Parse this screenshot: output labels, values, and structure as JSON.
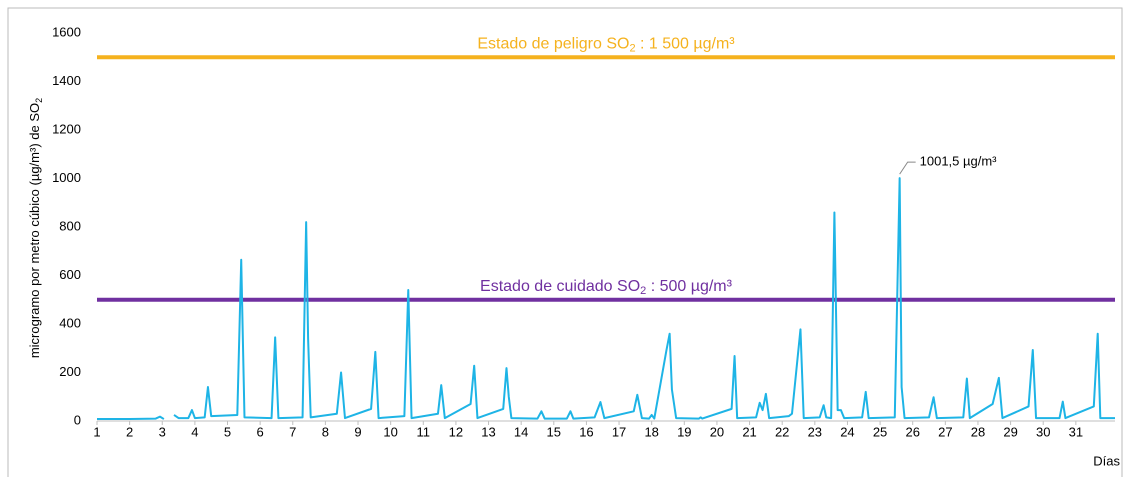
{
  "chart_data": {
    "type": "line",
    "y_label": {
      "prefix": "microgramo por metro cúbico (µg/m³) de SO",
      "sub": "2"
    },
    "x_label": "Días",
    "x": [
      1,
      2,
      2.8,
      2.93,
      3.05,
      3.2,
      3.36,
      3.5,
      3.8,
      3.91,
      4.0,
      4.3,
      4.4,
      4.5,
      5.3,
      5.42,
      5.52,
      6.35,
      6.46,
      6.56,
      7.3,
      7.41,
      7.47,
      7.55,
      8.35,
      8.48,
      8.6,
      9.4,
      9.53,
      9.63,
      10.42,
      10.54,
      10.64,
      11.45,
      11.55,
      11.66,
      12.45,
      12.56,
      12.66,
      13.45,
      13.55,
      13.62,
      13.7,
      14.5,
      14.62,
      14.72,
      15.4,
      15.51,
      15.6,
      16.25,
      16.43,
      16.55,
      17.45,
      17.56,
      17.7,
      17.92,
      18,
      18.08,
      18.45,
      18.55,
      18.62,
      18.75,
      19.45,
      19.5,
      19.55,
      20.45,
      20.54,
      20.62,
      21.2,
      21.31,
      21.4,
      21.5,
      21.6,
      22.2,
      22.3,
      22.56,
      22.66,
      23.15,
      23.27,
      23.35,
      23.5,
      23.6,
      23.7,
      23.8,
      23.9,
      24.45,
      24.56,
      24.65,
      25.45,
      25.6,
      25.66,
      25.75,
      26.5,
      26.64,
      26.74,
      27.55,
      27.66,
      27.75,
      28.45,
      28.64,
      28.75,
      29.55,
      29.68,
      29.78,
      30.5,
      30.6,
      30.68,
      31.55,
      31.67,
      31.75,
      32.2
    ],
    "series": [
      {
        "color": "#1eb4e6",
        "values": [
          8,
          8,
          10,
          18,
          8,
          null,
          25,
          12,
          12,
          45,
          12,
          15,
          140,
          20,
          25,
          665,
          15,
          12,
          345,
          12,
          15,
          820,
          340,
          15,
          30,
          200,
          12,
          50,
          285,
          12,
          20,
          540,
          12,
          30,
          148,
          12,
          70,
          228,
          12,
          50,
          218,
          100,
          12,
          10,
          40,
          10,
          10,
          40,
          10,
          15,
          78,
          12,
          40,
          108,
          12,
          10,
          25,
          10,
          290,
          360,
          130,
          12,
          10,
          15,
          10,
          50,
          268,
          12,
          15,
          75,
          45,
          112,
          12,
          20,
          30,
          378,
          12,
          15,
          65,
          15,
          12,
          860,
          45,
          45,
          12,
          15,
          120,
          12,
          15,
          1001.5,
          140,
          12,
          15,
          98,
          12,
          15,
          175,
          12,
          70,
          178,
          12,
          60,
          293,
          12,
          12,
          80,
          12,
          60,
          360,
          12,
          12
        ]
      }
    ],
    "thresholds": [
      {
        "value": 1500,
        "color": "#f5b21e",
        "prefix": "Estado de peligro SO",
        "sub": "2",
        "suffix": " : 1 500 µg/m³"
      },
      {
        "value": 500,
        "color": "#7030a0",
        "prefix": "Estado de cuidado SO",
        "sub": "2",
        "suffix": " : 500 µg/m³"
      }
    ],
    "annotation": {
      "text": "1001,5 µg/m³",
      "x": 25.6,
      "y": 1001.5
    },
    "xlim": [
      1,
      32.2
    ],
    "xticks": [
      1,
      2,
      3,
      4,
      5,
      6,
      7,
      8,
      9,
      10,
      11,
      12,
      13,
      14,
      15,
      16,
      17,
      18,
      19,
      20,
      21,
      22,
      23,
      24,
      25,
      26,
      27,
      28,
      29,
      30,
      31
    ],
    "ylim": [
      0,
      1600
    ],
    "yticks": [
      0,
      200,
      400,
      600,
      800,
      1000,
      1200,
      1400,
      1600
    ],
    "grid": false
  }
}
